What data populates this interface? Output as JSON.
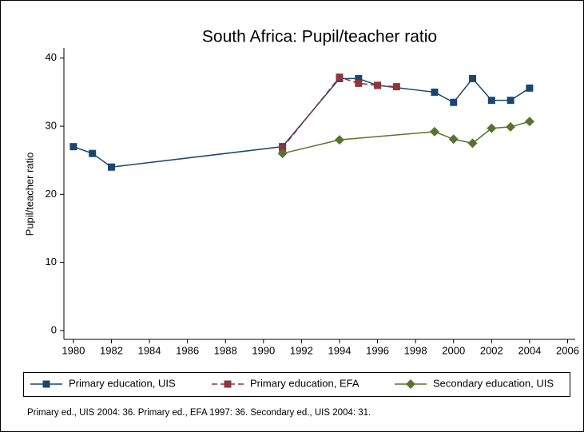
{
  "chart_data": {
    "type": "line",
    "title": "South Africa: Pupil/teacher ratio",
    "y_label": "Pupil/teacher ratio",
    "note": "Primary ed., UIS 2004: 36. Primary ed., EFA 1997: 36. Secondary ed., UIS 2004: 31.",
    "xlim": [
      1979.5,
      2006.4
    ],
    "ylim": [
      -1.3,
      41.5
    ],
    "xticks": [
      1980,
      1982,
      1984,
      1986,
      1988,
      1990,
      1992,
      1994,
      1996,
      1998,
      2000,
      2002,
      2004,
      2006
    ],
    "yticks": [
      0,
      10,
      20,
      30,
      40
    ],
    "grid": false,
    "legend": "bottom",
    "series": [
      {
        "name": "Primary education, UIS",
        "color": "#1a476f",
        "marker": "square",
        "dash": false,
        "x": [
          1980,
          1981,
          1982,
          1991,
          1994,
          1995,
          1996,
          1999,
          2000,
          2001,
          2002,
          2003,
          2004
        ],
        "values": [
          27,
          26,
          24,
          27,
          37,
          37,
          36,
          35,
          33.5,
          37,
          33.8,
          33.8,
          35.6
        ]
      },
      {
        "name": "Primary education, EFA",
        "color": "#90353b",
        "marker": "square",
        "dash": true,
        "x": [
          1991,
          1994,
          1995,
          1996,
          1997
        ],
        "values": [
          26.8,
          37.2,
          36.3,
          36,
          35.8
        ]
      },
      {
        "name": "Secondary education, UIS",
        "color": "#55752f",
        "marker": "diamond",
        "dash": false,
        "x": [
          1991,
          1994,
          1999,
          2000,
          2001,
          2002,
          2003,
          2004
        ],
        "values": [
          26,
          28,
          29.2,
          28.1,
          27.5,
          29.7,
          29.9,
          30.7
        ]
      }
    ]
  }
}
